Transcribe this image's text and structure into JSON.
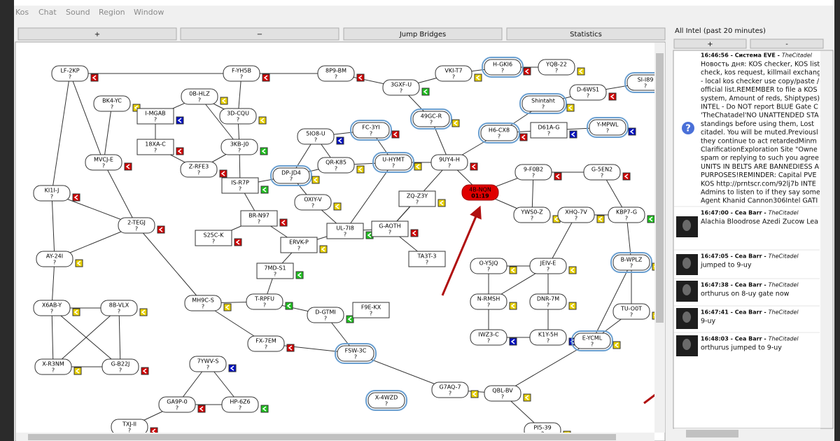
{
  "menu": [
    "Kos",
    "Chat",
    "Sound",
    "Region",
    "Window"
  ],
  "map_toolbar": [
    "+",
    "−",
    "Jump Bridges",
    "Statistics"
  ],
  "systems": [
    {
      "name": "LF-2KP",
      "status": "?"
    },
    {
      "name": "F-YH5B",
      "status": "?"
    },
    {
      "name": "8P9-BM",
      "status": "?"
    },
    {
      "name": "VKI-T7",
      "status": "?"
    },
    {
      "name": "H-GKI6",
      "status": "?"
    },
    {
      "name": "YQB-22",
      "status": "?"
    },
    {
      "name": "3GXF-U",
      "status": "?"
    },
    {
      "name": "0B-HLZ",
      "status": "?"
    },
    {
      "name": "BK4-YC",
      "status": "?"
    },
    {
      "name": "I-MGAB",
      "status": "?"
    },
    {
      "name": "3D-CQU",
      "status": "?"
    },
    {
      "name": "49GC-R",
      "status": "?"
    },
    {
      "name": "Shintaht",
      "status": "?"
    },
    {
      "name": "D-6WS1",
      "status": "?"
    },
    {
      "name": "SI-I89",
      "status": "?"
    },
    {
      "name": "18XA-C",
      "status": "?"
    },
    {
      "name": "3KB-J0",
      "status": "?"
    },
    {
      "name": "5IO8-U",
      "status": "?"
    },
    {
      "name": "FC-3YI",
      "status": "?"
    },
    {
      "name": "H6-CX8",
      "status": "?"
    },
    {
      "name": "D61A-G",
      "status": "?"
    },
    {
      "name": "Y-MPWL",
      "status": "?"
    },
    {
      "name": "MVCJ-E",
      "status": "?"
    },
    {
      "name": "Z-RFE3",
      "status": "?"
    },
    {
      "name": "QR-K85",
      "status": "?"
    },
    {
      "name": "U-HYMT",
      "status": "?"
    },
    {
      "name": "9UY4-H",
      "status": "?"
    },
    {
      "name": "DP-JD4",
      "status": "?"
    },
    {
      "name": "IS-R7P",
      "status": "?"
    },
    {
      "name": "9-F0B2",
      "status": "?"
    },
    {
      "name": "G-5EN2",
      "status": "?"
    },
    {
      "name": "KI1I-J",
      "status": "?"
    },
    {
      "name": "4B-NQN",
      "status": "01:19"
    },
    {
      "name": "ZQ-Z3Y",
      "status": "?"
    },
    {
      "name": "OXIY-V",
      "status": "?"
    },
    {
      "name": "2-TEGJ",
      "status": "?"
    },
    {
      "name": "BR-N97",
      "status": "?"
    },
    {
      "name": "YWS0-Z",
      "status": "?"
    },
    {
      "name": "XHQ-7V",
      "status": "?"
    },
    {
      "name": "KBP7-G",
      "status": "?"
    },
    {
      "name": "S25C-K",
      "status": "?"
    },
    {
      "name": "UL-7I8",
      "status": "?"
    },
    {
      "name": "G-AOTH",
      "status": "?"
    },
    {
      "name": "ERVK-P",
      "status": "?"
    },
    {
      "name": "AY-24I",
      "status": "?"
    },
    {
      "name": "TA3T-3",
      "status": "?"
    },
    {
      "name": "7MD-S1",
      "status": "?"
    },
    {
      "name": "O-Y5JQ",
      "status": "?"
    },
    {
      "name": "JEIV-E",
      "status": "?"
    },
    {
      "name": "B-WPLZ",
      "status": "?"
    },
    {
      "name": "MH9C-S",
      "status": "?"
    },
    {
      "name": "T-RPFU",
      "status": "?"
    },
    {
      "name": "X6AB-Y",
      "status": "?"
    },
    {
      "name": "8B-VLX",
      "status": "?"
    },
    {
      "name": "N-RMSH",
      "status": "?"
    },
    {
      "name": "DNR-7M",
      "status": "?"
    },
    {
      "name": "TU-O0T",
      "status": "?"
    },
    {
      "name": "D-GTMI",
      "status": "?"
    },
    {
      "name": "F9E-KX",
      "status": "?"
    },
    {
      "name": "IWZ3-C",
      "status": "?"
    },
    {
      "name": "K1Y-5H",
      "status": "?"
    },
    {
      "name": "E-YCML",
      "status": "?"
    },
    {
      "name": "FX-7EM",
      "status": "?"
    },
    {
      "name": "FSW-3C",
      "status": "?"
    },
    {
      "name": "X-R3NM",
      "status": "?"
    },
    {
      "name": "G-B22J",
      "status": "?"
    },
    {
      "name": "7YWV-S",
      "status": "?"
    },
    {
      "name": "G7AQ-7",
      "status": "?"
    },
    {
      "name": "QBL-BV",
      "status": "?"
    },
    {
      "name": "X-4WZD",
      "status": "?"
    },
    {
      "name": "GA9P-0",
      "status": "?"
    },
    {
      "name": "HP-6Z6",
      "status": "?"
    },
    {
      "name": "TXJ-II",
      "status": "?"
    },
    {
      "name": "PI5-39",
      "status": "?"
    }
  ],
  "intel": {
    "title": "All Intel (past 20 minutes)",
    "buttons": [
      "+",
      "-"
    ],
    "messages": [
      {
        "header": "16:46:56 - Система EVE -",
        "channel": "TheCitadel",
        "lines": [
          "Новость дня: KOS checker, KOS list",
          "check, kos request, killmail exchang",
          "- local kos checker use copy/paste /",
          "official list.REMEMBER to file a KOS",
          "system, Amount of reds, Shiptypes)",
          "INTEL - Do NOT report BLUE Gate C",
          "'TheChatadel'NO UNATTENDED STA",
          "standings before using them, Lost",
          "citadel. You will be muted.Previousl",
          "they continue to act retardedMinm",
          "ClarificationExploration Site \"Owne",
          "spam or replying to such you agree",
          "UNITS IN BELTS ARE BANNEDIESS AI",
          "PURPOSES!REMINDER: Capital PVE",
          "KOS http://prntscr.com/92lj7b INTE",
          "Admins to listen to if they say some",
          "Agent Khanid Cannon306Intel GATI"
        ]
      },
      {
        "header": "16:47:00 - Cea Barr -",
        "channel": "TheCitadel",
        "lines": [
          "Alachia Bloodrose Azedi Zucow Lea"
        ]
      },
      {
        "header": "16:47:05 - Cea Barr -",
        "channel": "TheCitadel",
        "lines": [
          "jumped to 9-uy"
        ]
      },
      {
        "header": "16:47:38 - Cea Barr -",
        "channel": "TheCitadel",
        "lines": [
          "orthurus on 8-uy gate now"
        ]
      },
      {
        "header": "16:47:41 - Cea Barr -",
        "channel": "TheCitadel",
        "lines": [
          "9-uy"
        ]
      },
      {
        "header": "16:48:03 - Cea Barr -",
        "channel": "TheCitadel",
        "lines": [
          "orthurus jumped to 9-uy"
        ]
      }
    ]
  }
}
